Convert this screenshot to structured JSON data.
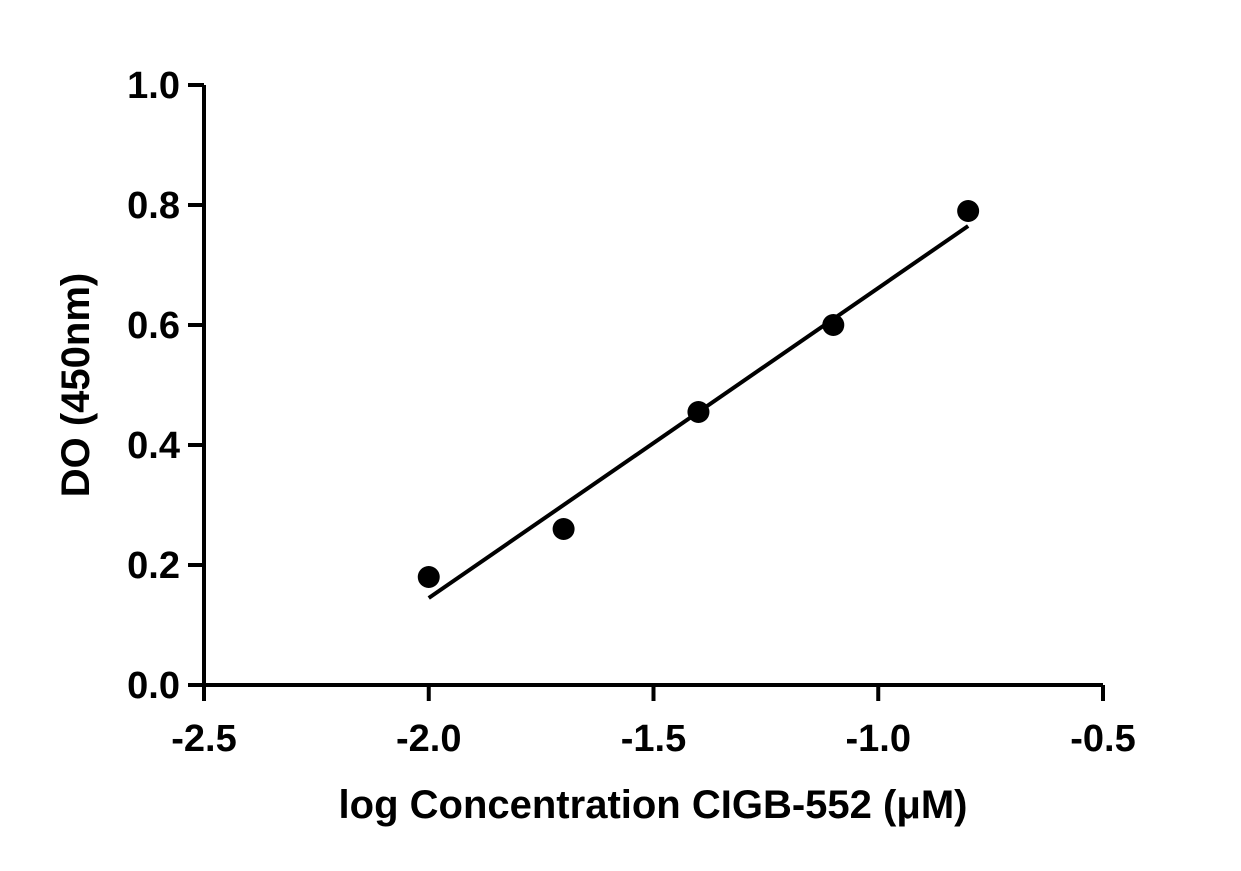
{
  "chart_data": {
    "type": "scatter",
    "title": "",
    "xlabel": "log Concentration CIGB-552 (μM)",
    "ylabel": "DO (450nm)",
    "xlim": [
      -2.5,
      -0.5
    ],
    "ylim": [
      0.0,
      1.0
    ],
    "x_ticks": [
      -2.5,
      -2.0,
      -1.5,
      -1.0,
      -0.5
    ],
    "y_ticks": [
      0.0,
      0.2,
      0.4,
      0.6,
      0.8,
      1.0
    ],
    "x_tick_labels": [
      "-2.5",
      "-2.0",
      "-1.5",
      "-1.0",
      "-0.5"
    ],
    "y_tick_labels": [
      "0.0",
      "0.2",
      "0.4",
      "0.6",
      "0.8",
      "1.0"
    ],
    "grid": false,
    "legend": "none",
    "series": [
      {
        "x": [
          -2.0,
          -1.7,
          -1.4,
          -1.1,
          -0.8
        ],
        "y": [
          0.18,
          0.26,
          0.455,
          0.6,
          0.79
        ]
      }
    ],
    "fit_line": {
      "type": "linear",
      "x": [
        -2.0,
        -0.8
      ],
      "y": [
        0.145,
        0.765
      ]
    },
    "colors": {
      "marker": "#000000",
      "line": "#000000",
      "axes": "#000000"
    }
  }
}
